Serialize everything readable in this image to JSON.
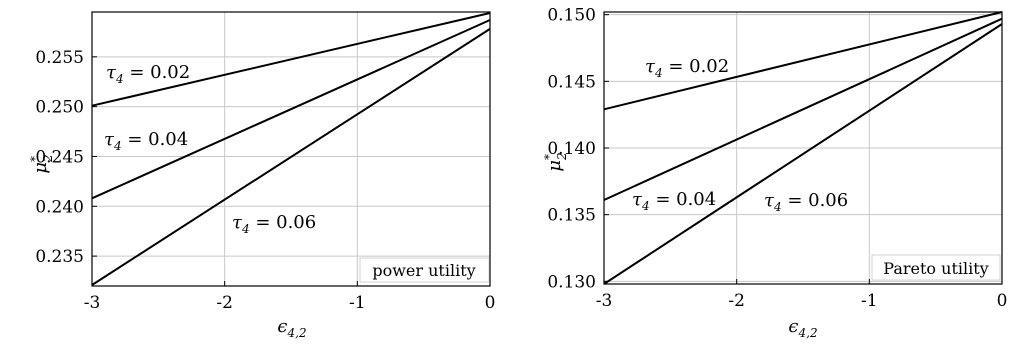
{
  "chart_data": [
    {
      "type": "line",
      "xlabel": "ϵ4,2",
      "ylabel": "μ2*",
      "xlim": [
        -3,
        0
      ],
      "ylim": [
        0.232,
        0.2595
      ],
      "xticks": [
        -3,
        -2,
        -1,
        0
      ],
      "xtick_labels": [
        "-3",
        "-2",
        "-1",
        "0"
      ],
      "yticks": [
        0.235,
        0.24,
        0.245,
        0.25,
        0.255
      ],
      "ytick_labels": [
        "0.235",
        "0.240",
        "0.245",
        "0.250",
        "0.255"
      ],
      "grid": true,
      "annotation": "power utility",
      "series": [
        {
          "name": "τ4 = 0.02",
          "x": [
            -3,
            0
          ],
          "y": [
            0.2501,
            0.2594
          ]
        },
        {
          "name": "τ4 = 0.04",
          "x": [
            -3,
            0
          ],
          "y": [
            0.2408,
            0.2587
          ]
        },
        {
          "name": "τ4 = 0.06",
          "x": [
            -3,
            0
          ],
          "y": [
            0.2321,
            0.2578
          ]
        }
      ]
    },
    {
      "type": "line",
      "xlabel": "ϵ4,2",
      "ylabel": "μ2*",
      "xlim": [
        -3,
        0
      ],
      "ylim": [
        0.1298,
        0.1502
      ],
      "xticks": [
        -3,
        -2,
        -1,
        0
      ],
      "xtick_labels": [
        "-3",
        "-2",
        "-1",
        "0"
      ],
      "yticks": [
        0.13,
        0.135,
        0.14,
        0.145,
        0.15
      ],
      "ytick_labels": [
        "0.130",
        "0.135",
        "0.140",
        "0.145",
        "0.150"
      ],
      "grid": true,
      "annotation": "Pareto utility",
      "series": [
        {
          "name": "τ4 = 0.02",
          "x": [
            -3,
            0
          ],
          "y": [
            0.1429,
            0.1502
          ]
        },
        {
          "name": "τ4 = 0.04",
          "x": [
            -3,
            0
          ],
          "y": [
            0.1361,
            0.1497
          ]
        },
        {
          "name": "τ4 = 0.06",
          "x": [
            -3,
            0
          ],
          "y": [
            0.1298,
            0.1493
          ]
        }
      ]
    }
  ]
}
